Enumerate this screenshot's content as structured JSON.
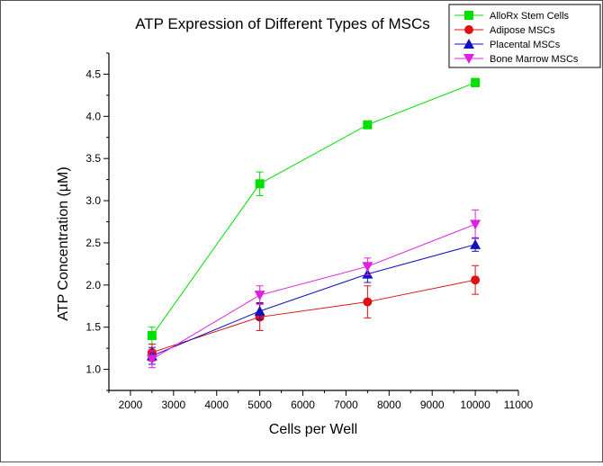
{
  "chart_data": {
    "type": "line",
    "title": "ATP Expression of Different Types of MSCs",
    "xlabel": "Cells per Well",
    "ylabel": "ATP Concentration (µM)",
    "xlim": [
      1500,
      11000
    ],
    "ylim": [
      0.75,
      4.75
    ],
    "x_ticks": [
      "2000",
      "3000",
      "4000",
      "5000",
      "6000",
      "7000",
      "8000",
      "9000",
      "10000",
      "11000"
    ],
    "y_ticks": [
      "1.0",
      "1.5",
      "2.0",
      "2.5",
      "3.0",
      "3.5",
      "4.0",
      "4.5"
    ],
    "x": [
      2500,
      5000,
      7500,
      10000
    ],
    "grid": false,
    "legend_position": "top-right",
    "series": [
      {
        "name": "AlloRx Stem Cells",
        "color": "#00e000",
        "marker": "square",
        "values": [
          1.4,
          3.2,
          3.9,
          4.4
        ],
        "errors": [
          0.1,
          0.14,
          0.02,
          0.05
        ]
      },
      {
        "name": "Adipose MSCs",
        "color": "#e01010",
        "marker": "circle",
        "values": [
          1.2,
          1.62,
          1.8,
          2.06
        ],
        "errors": [
          0.1,
          0.16,
          0.19,
          0.17
        ]
      },
      {
        "name": "Placental MSCs",
        "color": "#1010c0",
        "marker": "triangle-up",
        "values": [
          1.16,
          1.69,
          2.13,
          2.48
        ],
        "errors": [
          0.1,
          0.1,
          0.1,
          0.08
        ]
      },
      {
        "name": "Bone Marrow MSCs",
        "color": "#e020e0",
        "marker": "triangle-down",
        "values": [
          1.12,
          1.88,
          2.22,
          2.72
        ],
        "errors": [
          0.1,
          0.11,
          0.1,
          0.17
        ]
      }
    ]
  }
}
